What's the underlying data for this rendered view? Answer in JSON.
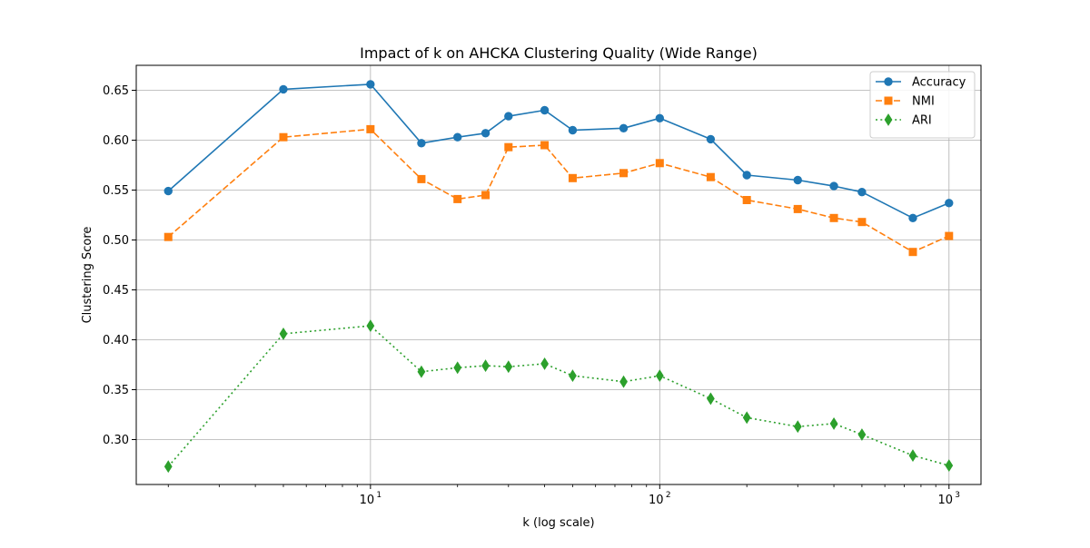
{
  "chart_data": {
    "type": "line",
    "title": "Impact of k on AHCKA Clustering Quality (Wide Range)",
    "xlabel": "k (log scale)",
    "ylabel": "Clustering Score",
    "x_scale": "log",
    "xlim": [
      1.55,
      1290
    ],
    "ylim": [
      0.255,
      0.675
    ],
    "grid": true,
    "legend_position": "top-right",
    "x": [
      2,
      5,
      10,
      15,
      20,
      25,
      30,
      40,
      50,
      75,
      100,
      150,
      200,
      300,
      400,
      500,
      750,
      1000
    ],
    "x_ticks": [
      {
        "value": 10,
        "label": "10",
        "exp": "1"
      },
      {
        "value": 100,
        "label": "10",
        "exp": "2"
      },
      {
        "value": 1000,
        "label": "10",
        "exp": "3"
      }
    ],
    "y_ticks": [
      {
        "value": 0.3,
        "label": "0.30"
      },
      {
        "value": 0.35,
        "label": "0.35"
      },
      {
        "value": 0.4,
        "label": "0.40"
      },
      {
        "value": 0.45,
        "label": "0.45"
      },
      {
        "value": 0.5,
        "label": "0.50"
      },
      {
        "value": 0.55,
        "label": "0.55"
      },
      {
        "value": 0.6,
        "label": "0.60"
      },
      {
        "value": 0.65,
        "label": "0.65"
      }
    ],
    "series": [
      {
        "name": "Accuracy",
        "color": "#1f77b4",
        "marker": "circle",
        "line_style": "solid",
        "values": [
          0.549,
          0.651,
          0.656,
          0.597,
          0.603,
          0.607,
          0.624,
          0.63,
          0.61,
          0.612,
          0.622,
          0.601,
          0.565,
          0.56,
          0.554,
          0.548,
          0.522,
          0.537
        ]
      },
      {
        "name": "NMI",
        "color": "#ff7f0e",
        "marker": "square",
        "line_style": "dashed",
        "values": [
          0.503,
          0.603,
          0.611,
          0.561,
          0.541,
          0.545,
          0.593,
          0.595,
          0.562,
          0.567,
          0.577,
          0.563,
          0.54,
          0.531,
          0.522,
          0.518,
          0.488,
          0.504
        ]
      },
      {
        "name": "ARI",
        "color": "#2ca02c",
        "marker": "thin-diamond",
        "line_style": "dotted",
        "values": [
          0.273,
          0.406,
          0.414,
          0.368,
          0.372,
          0.374,
          0.373,
          0.376,
          0.364,
          0.358,
          0.364,
          0.341,
          0.322,
          0.313,
          0.316,
          0.305,
          0.284,
          0.274
        ]
      }
    ]
  }
}
